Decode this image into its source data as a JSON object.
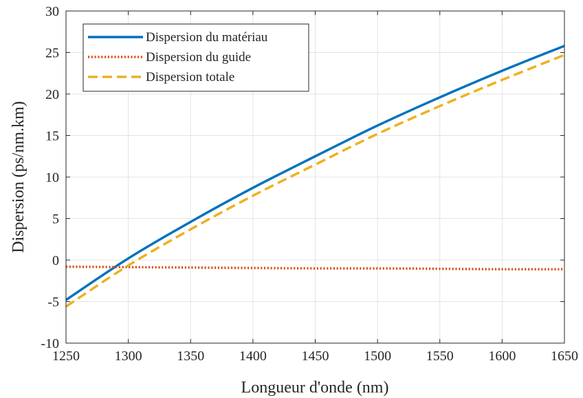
{
  "chart_data": {
    "type": "line",
    "xlabel": "Longueur d'onde (nm)",
    "ylabel": "Dispersion (ps/nm.km)",
    "xlim": [
      1250,
      1650
    ],
    "ylim": [
      -10,
      30
    ],
    "xticks": [
      1250,
      1300,
      1350,
      1400,
      1450,
      1500,
      1550,
      1600,
      1650
    ],
    "yticks": [
      -10,
      -5,
      0,
      5,
      10,
      15,
      20,
      25,
      30
    ],
    "grid": true,
    "legend_position": "top-left",
    "x": [
      1250,
      1300,
      1350,
      1400,
      1450,
      1500,
      1550,
      1600,
      1650
    ],
    "series": [
      {
        "name": "Dispersion du matériau",
        "color": "#0072BD",
        "style": "solid",
        "values": [
          -4.8,
          0.2,
          4.6,
          8.7,
          12.5,
          16.2,
          19.6,
          22.8,
          25.8
        ]
      },
      {
        "name": "Dispersion du guide",
        "color": "#D95319",
        "style": "dotted",
        "values": [
          -0.8,
          -0.85,
          -0.9,
          -0.95,
          -1.0,
          -1.0,
          -1.05,
          -1.1,
          -1.1
        ]
      },
      {
        "name": "Dispersion totale",
        "color": "#EDB120",
        "style": "dashed",
        "values": [
          -5.6,
          -0.65,
          3.7,
          7.75,
          11.5,
          15.2,
          18.55,
          21.7,
          24.7
        ]
      }
    ]
  }
}
